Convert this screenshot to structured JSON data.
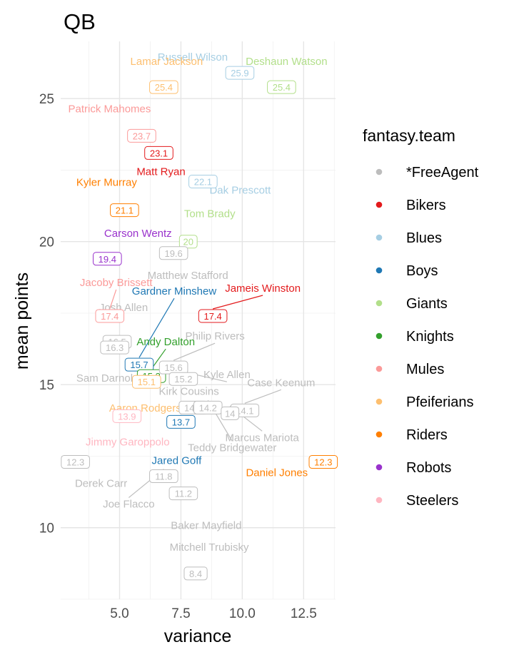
{
  "chart_data": {
    "type": "scatter",
    "title": "QB",
    "xlabel": "variance",
    "ylabel": "mean points",
    "xlim": [
      2.6,
      13.8
    ],
    "ylim": [
      7.5,
      27.0
    ],
    "x_ticks": [
      "5.0",
      "7.5",
      "10.0",
      "12.5"
    ],
    "y_ticks": [
      "10",
      "15",
      "20",
      "25"
    ],
    "grid": true,
    "legend": {
      "title": "fantasy.team",
      "placement": "right",
      "entries": [
        {
          "name": "*FreeAgent",
          "color": "#bdbdbd"
        },
        {
          "name": "Bikers",
          "color": "#e31a1c"
        },
        {
          "name": "Blues",
          "color": "#a6cee3"
        },
        {
          "name": "Boys",
          "color": "#1f78b4"
        },
        {
          "name": "Giants",
          "color": "#b2df8a"
        },
        {
          "name": "Knights",
          "color": "#33a02c"
        },
        {
          "name": "Mules",
          "color": "#fb9a99"
        },
        {
          "name": "Pfeiferians",
          "color": "#fdbf6f"
        },
        {
          "name": "Riders",
          "color": "#ff7f00"
        },
        {
          "name": "Robots",
          "color": "#9932cc"
        },
        {
          "name": "Steelers",
          "color": "#ffb6c1"
        }
      ]
    },
    "points": [
      {
        "name": "Russell Wilson",
        "team": "Blues",
        "value": "25.9",
        "x": 9.9,
        "y": 25.9
      },
      {
        "name": "Lamar Jackson",
        "team": "Pfeiferians",
        "value": "25.4",
        "x": 6.8,
        "y": 25.4
      },
      {
        "name": "Deshaun Watson",
        "team": "Giants",
        "value": "25.4",
        "x": 11.6,
        "y": 25.4
      },
      {
        "name": "Patrick Mahomes",
        "team": "Mules",
        "value": "23.7",
        "x": 5.9,
        "y": 23.7
      },
      {
        "name": "Matt Ryan",
        "team": "Bikers",
        "value": "23.1",
        "x": 6.6,
        "y": 23.1
      },
      {
        "name": "Dak Prescott",
        "team": "Blues",
        "value": "22.1",
        "x": 8.4,
        "y": 22.1
      },
      {
        "name": "Kyler Murray",
        "team": "Riders",
        "value": "21.1",
        "x": 5.2,
        "y": 21.1
      },
      {
        "name": "Tom Brady",
        "team": "Giants",
        "value": "20",
        "x": 7.8,
        "y": 20.0
      },
      {
        "name": "Carson Wentz",
        "team": "Robots",
        "value": "19.4",
        "x": 4.5,
        "y": 19.4
      },
      {
        "name": "Matthew Stafford",
        "team": "*FreeAgent",
        "value": "19.6",
        "x": 7.2,
        "y": 19.6
      },
      {
        "name": "Jacoby Brissett",
        "team": "Mules",
        "value": "17.4",
        "x": 4.6,
        "y": 17.4
      },
      {
        "name": "Jameis Winston",
        "team": "Bikers",
        "value": "17.4",
        "x": 8.8,
        "y": 17.4
      },
      {
        "name": "Josh Allen",
        "team": "*FreeAgent",
        "value": "16.5",
        "x": 4.9,
        "y": 16.5
      },
      {
        "name": "Sam Darnold",
        "team": "*FreeAgent",
        "value": "16.3",
        "x": 4.8,
        "y": 16.3
      },
      {
        "name": "Gardner Minshew",
        "team": "Boys",
        "value": "15.7",
        "x": 5.8,
        "y": 15.7
      },
      {
        "name": "Andy Dalton",
        "team": "Knights",
        "value": "15.3",
        "x": 6.3,
        "y": 15.3
      },
      {
        "name": "Philip Rivers",
        "team": "*FreeAgent",
        "value": "15.6",
        "x": 7.2,
        "y": 15.6
      },
      {
        "name": "Kyle Allen",
        "team": "*FreeAgent",
        "value": "15.2",
        "x": 7.6,
        "y": 15.2
      },
      {
        "name": "Aaron Rodgers",
        "team": "Pfeiferians",
        "value": "15.1",
        "x": 6.1,
        "y": 15.1
      },
      {
        "name": "Kirk Cousins",
        "team": "*FreeAgent",
        "value": "14.2",
        "x": 8.0,
        "y": 14.2
      },
      {
        "name": "Teddy Bridgewater",
        "team": "*FreeAgent",
        "value": "14.2",
        "x": 8.6,
        "y": 14.2
      },
      {
        "name": "Case Keenum",
        "team": "*FreeAgent",
        "value": "14.1",
        "x": 10.1,
        "y": 14.1
      },
      {
        "name": "Marcus Mariota",
        "team": "*FreeAgent",
        "value": "14",
        "x": 9.5,
        "y": 14.0
      },
      {
        "name": "Jimmy Garoppolo",
        "team": "Steelers",
        "value": "13.9",
        "x": 5.3,
        "y": 13.9
      },
      {
        "name": "Jared Goff",
        "team": "Boys",
        "value": "13.7",
        "x": 7.5,
        "y": 13.7
      },
      {
        "name": "Derek Carr",
        "team": "*FreeAgent",
        "value": "12.3",
        "x": 3.2,
        "y": 12.3
      },
      {
        "name": "Daniel Jones",
        "team": "Riders",
        "value": "12.3",
        "x": 13.3,
        "y": 12.3
      },
      {
        "name": "Joe Flacco",
        "team": "*FreeAgent",
        "value": "11.8",
        "x": 6.8,
        "y": 11.8
      },
      {
        "name": "Baker Mayfield",
        "team": "*FreeAgent",
        "value": "11.2",
        "x": 7.6,
        "y": 11.2
      },
      {
        "name": "Mitchell Trubisky",
        "team": "*FreeAgent",
        "value": "8.4",
        "x": 8.1,
        "y": 8.4
      }
    ]
  }
}
